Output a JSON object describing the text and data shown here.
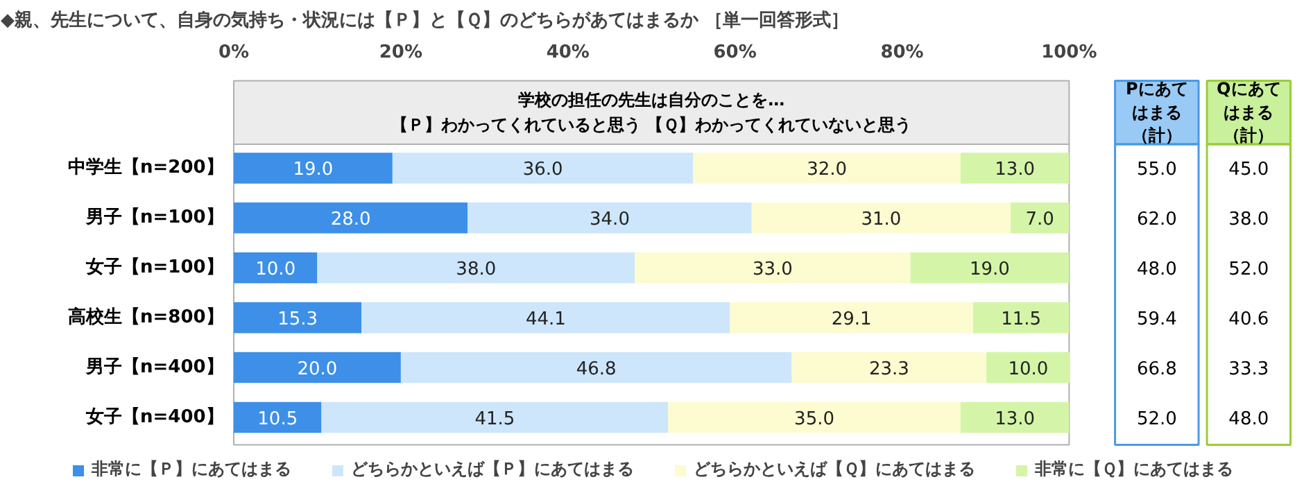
{
  "chart_data": {
    "type": "bar",
    "orientation": "horizontal",
    "stacked": true,
    "legend": "bottom",
    "title": "◆親、先生について、自身の気持ち・状況には【Ｐ】と【Ｑ】のどちらがあてはまるか ［単一回答形式］",
    "subtitle": "学校の担任の先生は自分のことを…\n【Ｐ】わかってくれていると思う 【Ｑ】わかってくれていないと思う",
    "categories": [
      "中学生【n=200】",
      "男子【n=100】",
      "女子【n=100】",
      "高校生【n=800】",
      "男子【n=400】",
      "女子【n=400】"
    ],
    "xlim": [
      0,
      100
    ],
    "xticks": [
      {
        "value": 0,
        "label": "0%"
      },
      {
        "value": 20,
        "label": "20%"
      },
      {
        "value": 40,
        "label": "40%"
      },
      {
        "value": 60,
        "label": "60%"
      },
      {
        "value": 80,
        "label": "80%"
      },
      {
        "value": 100,
        "label": "100%"
      }
    ],
    "series": [
      {
        "name": "非常に【Ｐ】にあてはまる",
        "color": "#3d8fe8",
        "values": [
          19.0,
          28.0,
          10.0,
          15.3,
          20.0,
          10.5
        ],
        "value_labels": [
          "19.0",
          "28.0",
          "10.0",
          "15.3",
          "20.0",
          "10.5"
        ]
      },
      {
        "name": "どちらかといえば【Ｐ】にあてはまる",
        "color": "#cde6fb",
        "values": [
          36.0,
          34.0,
          38.0,
          44.1,
          46.8,
          41.5
        ],
        "value_labels": [
          "36.0",
          "34.0",
          "38.0",
          "44.1",
          "46.8",
          "41.5"
        ]
      },
      {
        "name": "どちらかといえば【Ｑ】にあてはまる",
        "color": "#fdfbd0",
        "values": [
          32.0,
          31.0,
          33.0,
          29.1,
          23.3,
          35.0
        ],
        "value_labels": [
          "32.0",
          "31.0",
          "33.0",
          "29.1",
          "23.3",
          "35.0"
        ]
      },
      {
        "name": "非常に【Ｑ】にあてはまる",
        "color": "#d4f5a8",
        "values": [
          13.0,
          7.0,
          19.0,
          11.5,
          10.0,
          13.0
        ],
        "value_labels": [
          "13.0",
          "7.0",
          "19.0",
          "11.5",
          "10.0",
          "13.0"
        ]
      }
    ],
    "annotations": [
      "Pにあてはまる（計）",
      "Qにあてはまる（計）",
      "55.0",
      "45.0",
      "62.0",
      "38.0",
      "48.0",
      "52.0",
      "59.4",
      "40.6",
      "66.8",
      "33.3",
      "52.0",
      "48.0"
    ]
  }
}
